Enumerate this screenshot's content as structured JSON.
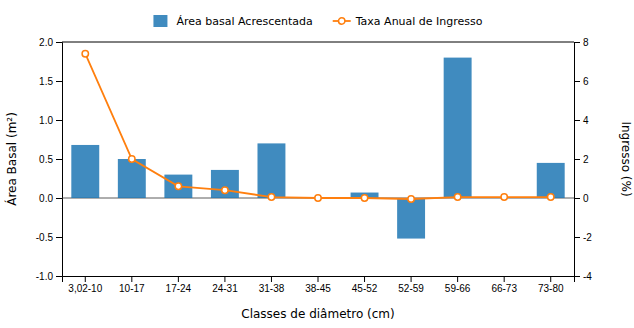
{
  "chart_data": {
    "type": "bar",
    "categories": [
      "3,02-10",
      "10-17",
      "17-24",
      "24-31",
      "31-38",
      "38-45",
      "45-52",
      "52-59",
      "59-66",
      "66-73",
      "73-80"
    ],
    "xlabel": "Classes de diâmetro (cm)",
    "ylabel": "Área Basal (m²)",
    "y2label": "Ingresso (%)",
    "ylim": [
      -1.0,
      2.0
    ],
    "yticks": [
      {
        "value": -1.0,
        "label": "-1.0"
      },
      {
        "value": -0.5,
        "label": "-0.5"
      },
      {
        "value": 0.0,
        "label": "0.0"
      },
      {
        "value": 0.5,
        "label": "0.5"
      },
      {
        "value": 1.0,
        "label": "1.0"
      },
      {
        "value": 1.5,
        "label": "1.5"
      },
      {
        "value": 2.0,
        "label": "2.0"
      }
    ],
    "y2lim": [
      -4,
      8
    ],
    "y2ticks": [
      -4,
      -2,
      0,
      2,
      4,
      6,
      8
    ],
    "series": [
      {
        "name": "Área basal Acrescentada",
        "type": "bar",
        "values": [
          0.68,
          0.5,
          0.3,
          0.36,
          0.7,
          0.0,
          0.07,
          -0.52,
          1.8,
          0.0,
          0.45
        ]
      },
      {
        "name": "Taxa Anual de Ingresso",
        "type": "line",
        "axis": "y2",
        "marker": "circle",
        "values": [
          7.4,
          2.0,
          0.6,
          0.4,
          0.05,
          0.0,
          0.0,
          -0.05,
          0.05,
          0.05,
          0.05
        ]
      }
    ],
    "legend": "top",
    "grid": false
  }
}
